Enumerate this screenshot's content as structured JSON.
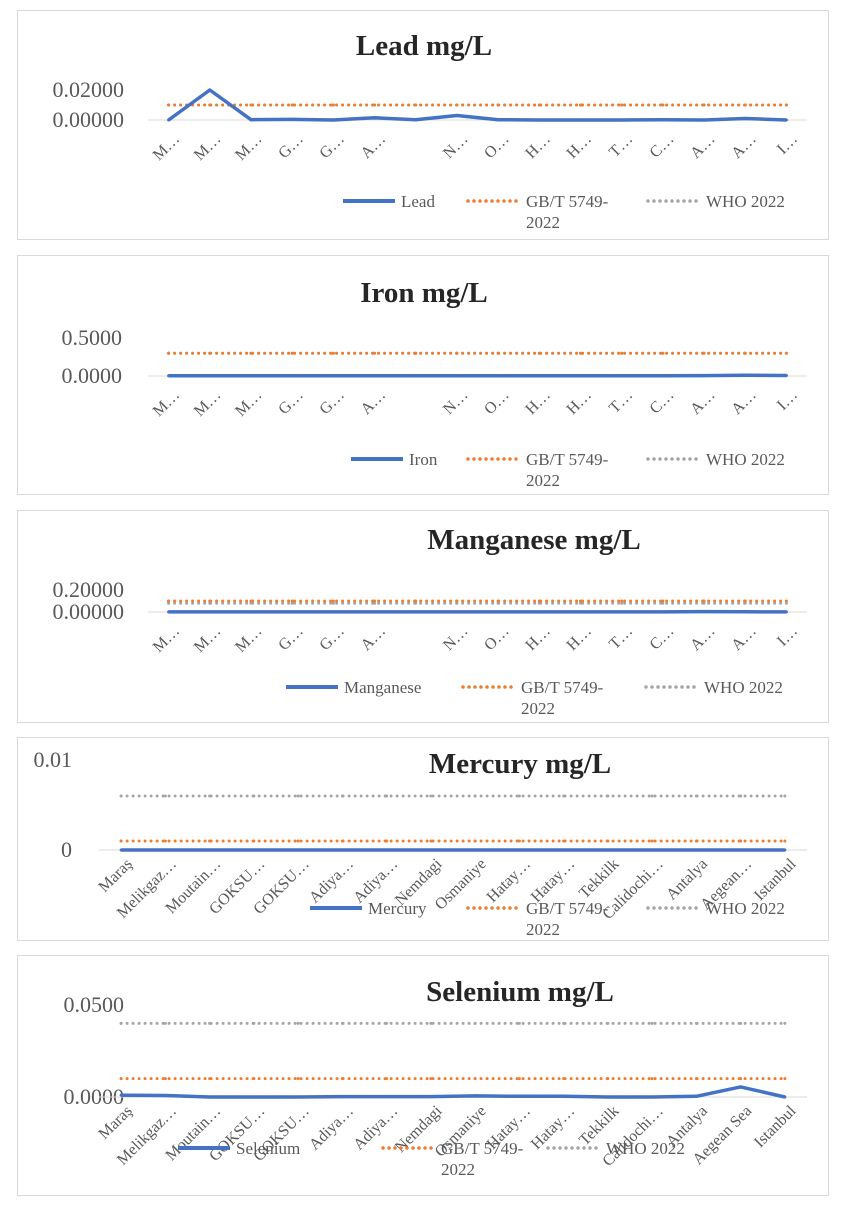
{
  "colors": {
    "measured": "#4472c4",
    "gb": "#ed7d31",
    "who": "#a5a5a5",
    "axis": "#d9d9d9",
    "text": "#595959"
  },
  "chart_data": [
    {
      "type": "line",
      "title": "Lead mg/L",
      "xlabel": "",
      "ylabel": "",
      "tick_labels": [
        "0.00000",
        "0.02000"
      ],
      "tick_values": [
        0,
        0.02
      ],
      "categories": [
        "M…",
        "M…",
        "M…",
        "G…",
        "G…",
        "A…",
        "",
        "N…",
        "O…",
        "H…",
        "H…",
        "T…",
        "C…",
        "A…",
        "A…",
        "I…"
      ],
      "series": [
        {
          "name": "Lead",
          "style": "solid",
          "values": [
            0.0,
            0.02,
            0.0002,
            0.0004,
            0.0,
            0.0015,
            0.0002,
            0.003,
            0.0002,
            0.0,
            0.0,
            0.0,
            0.0002,
            0.0,
            0.001,
            0.0
          ]
        },
        {
          "name": "GB/T 5749-2022",
          "style": "dotted",
          "values": [
            0.01,
            0.01,
            0.01,
            0.01,
            0.01,
            0.01,
            0.01,
            0.01,
            0.01,
            0.01,
            0.01,
            0.01,
            0.01,
            0.01,
            0.01,
            0.01
          ]
        },
        {
          "name": "WHO   2022",
          "style": "dotted",
          "values": [
            0.01,
            0.01,
            0.01,
            0.01,
            0.01,
            0.01,
            0.01,
            0.01,
            0.01,
            0.01,
            0.01,
            0.01,
            0.01,
            0.01,
            0.01,
            0.01
          ]
        }
      ],
      "legend_position": "bottom-right",
      "grid": false
    },
    {
      "type": "line",
      "title": "Iron mg/L",
      "xlabel": "",
      "ylabel": "",
      "tick_labels": [
        "0.0000",
        "0.5000"
      ],
      "tick_values": [
        0,
        0.5
      ],
      "categories": [
        "M…",
        "M…",
        "M…",
        "G…",
        "G…",
        "A…",
        "",
        "N…",
        "O…",
        "H…",
        "H…",
        "T…",
        "C…",
        "A…",
        "A…",
        "I…"
      ],
      "series": [
        {
          "name": "Iron",
          "style": "solid",
          "values": [
            0.003,
            0.003,
            0.003,
            0.003,
            0.003,
            0.003,
            0.003,
            0.003,
            0.003,
            0.003,
            0.003,
            0.003,
            0.002,
            0.005,
            0.01,
            0.006
          ]
        },
        {
          "name": "GB/T 5749-2022",
          "style": "dotted",
          "values": [
            0.3,
            0.3,
            0.3,
            0.3,
            0.3,
            0.3,
            0.3,
            0.3,
            0.3,
            0.3,
            0.3,
            0.3,
            0.3,
            0.3,
            0.3,
            0.3
          ]
        },
        {
          "name": "WHO   2022",
          "style": "dotted",
          "values": [
            0.3,
            0.3,
            0.3,
            0.3,
            0.3,
            0.3,
            0.3,
            0.3,
            0.3,
            0.3,
            0.3,
            0.3,
            0.3,
            0.3,
            0.3,
            0.3
          ]
        }
      ],
      "legend_position": "bottom-right",
      "grid": false
    },
    {
      "type": "line",
      "title": "Manganese mg/L",
      "xlabel": "",
      "ylabel": "",
      "tick_labels": [
        "0.00000",
        "0.20000"
      ],
      "tick_values": [
        0,
        0.2
      ],
      "categories": [
        "M…",
        "M…",
        "M…",
        "G…",
        "G…",
        "A…",
        "",
        "N…",
        "O…",
        "H…",
        "H…",
        "T…",
        "C…",
        "A…",
        "A…",
        "I…"
      ],
      "series": [
        {
          "name": "Manganese",
          "style": "solid",
          "values": [
            0.001,
            0.001,
            0.001,
            0.001,
            0.001,
            0.001,
            0.001,
            0.001,
            0.001,
            0.001,
            0.001,
            0.001,
            0.001,
            0.004,
            0.002,
            0.001
          ]
        },
        {
          "name": "GB/T 5749-2022",
          "style": "dotted",
          "values": [
            0.1,
            0.1,
            0.1,
            0.1,
            0.1,
            0.1,
            0.1,
            0.1,
            0.1,
            0.1,
            0.1,
            0.1,
            0.1,
            0.1,
            0.1,
            0.1
          ]
        },
        {
          "name": "WHO   2022",
          "style": "dotted",
          "values": [
            0.08,
            0.08,
            0.08,
            0.08,
            0.08,
            0.08,
            0.08,
            0.08,
            0.08,
            0.08,
            0.08,
            0.08,
            0.08,
            0.08,
            0.08,
            0.08
          ]
        }
      ],
      "legend_position": "bottom-right",
      "grid": false
    },
    {
      "type": "line",
      "title": "Mercury mg/L",
      "xlabel": "",
      "ylabel": "",
      "tick_labels": [
        "0",
        "0.01"
      ],
      "tick_values": [
        0,
        0.01
      ],
      "categories": [
        "Maraş",
        "Melikgaz…",
        "Moutain…",
        "GOKSU…",
        "GOKSU…",
        "Adiya…",
        "Adiya…",
        "Nemdagi",
        "Osmaniye",
        "Hatay…",
        "Hatay…",
        "Tekkilk",
        "Calidochi…",
        "Antalya",
        "Aegean…",
        "Istanbul"
      ],
      "series": [
        {
          "name": "Mercury",
          "style": "solid",
          "values": [
            0,
            0,
            0,
            0,
            0,
            0,
            0,
            0,
            0,
            0,
            0,
            0,
            0,
            0,
            0,
            0
          ]
        },
        {
          "name": "GB/T 5749-2022",
          "style": "dotted",
          "values": [
            0.001,
            0.001,
            0.001,
            0.001,
            0.001,
            0.001,
            0.001,
            0.001,
            0.001,
            0.001,
            0.001,
            0.001,
            0.001,
            0.001,
            0.001,
            0.001
          ]
        },
        {
          "name": "WHO   2022",
          "style": "dotted",
          "values": [
            0.006,
            0.006,
            0.006,
            0.006,
            0.006,
            0.006,
            0.006,
            0.006,
            0.006,
            0.006,
            0.006,
            0.006,
            0.006,
            0.006,
            0.006,
            0.006
          ]
        }
      ],
      "legend_position": "bottom-right",
      "grid": false
    },
    {
      "type": "line",
      "title": "Selenium mg/L",
      "xlabel": "",
      "ylabel": "",
      "tick_labels": [
        "0.0000",
        "0.0500"
      ],
      "tick_values": [
        0,
        0.05
      ],
      "categories": [
        "Maraş",
        "Melikgaz…",
        "Moutain…",
        "GOKSU…",
        "GOKSU…",
        "Adiya…",
        "Adiya…",
        "Nemdagi",
        "Osmaniye",
        "Hatay…",
        "Hatay…",
        "Tekkilk",
        "Calidochi…",
        "Antalya",
        "Aegean Sea",
        "Istanbul"
      ],
      "series": [
        {
          "name": "Selenium",
          "style": "solid",
          "values": [
            0.001,
            0.0008,
            0.0,
            0.0,
            0.0,
            0.0002,
            0.0002,
            0.0002,
            0.0006,
            0.0004,
            0.0004,
            0.0,
            0.0,
            0.0004,
            0.0055,
            0.0
          ]
        },
        {
          "name": "GB/T 5749-2022",
          "style": "dotted",
          "values": [
            0.01,
            0.01,
            0.01,
            0.01,
            0.01,
            0.01,
            0.01,
            0.01,
            0.01,
            0.01,
            0.01,
            0.01,
            0.01,
            0.01,
            0.01,
            0.01
          ]
        },
        {
          "name": "WHO   2022",
          "style": "dotted",
          "values": [
            0.04,
            0.04,
            0.04,
            0.04,
            0.04,
            0.04,
            0.04,
            0.04,
            0.04,
            0.04,
            0.04,
            0.04,
            0.04,
            0.04,
            0.04,
            0.04
          ]
        }
      ],
      "legend_position": "bottom-right",
      "grid": false
    }
  ]
}
